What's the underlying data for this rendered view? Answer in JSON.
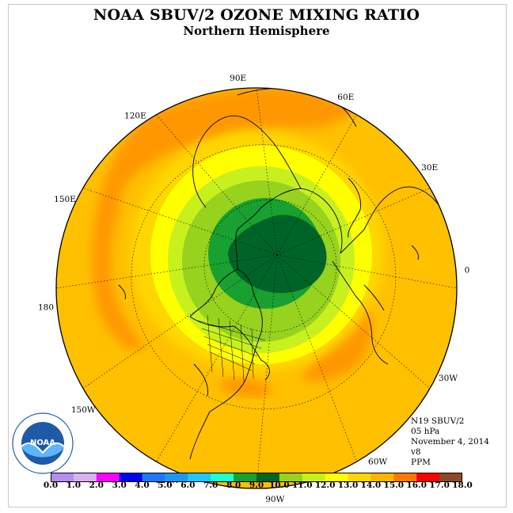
{
  "title": "NOAA SBUV/2 OZONE MIXING RATIO",
  "subtitle": "Northern Hemisphere",
  "longitude_labels": [
    {
      "text": "90E",
      "lon": 90
    },
    {
      "text": "60E",
      "lon": 60
    },
    {
      "text": "30E",
      "lon": 30
    },
    {
      "text": "0",
      "lon": 0
    },
    {
      "text": "30W",
      "lon": -30
    },
    {
      "text": "60W",
      "lon": -60
    },
    {
      "text": "90W",
      "lon": -90
    },
    {
      "text": "120W",
      "lon": -120
    },
    {
      "text": "150W",
      "lon": -150
    },
    {
      "text": "180",
      "lon": 180
    },
    {
      "text": "150E",
      "lon": 150
    },
    {
      "text": "120E",
      "lon": 120
    }
  ],
  "info": {
    "satellite": "N19 SBUV/2",
    "level": "05 hPa",
    "date": "November 4, 2014",
    "version": "v8",
    "units": "PPM"
  },
  "colorbar": {
    "ticks": [
      "0.0",
      "1.0",
      "2.0",
      "3.0",
      "4.0",
      "5.0",
      "6.0",
      "7.0",
      "8.0",
      "9.0",
      "10.0",
      "11.0",
      "12.0",
      "13.0",
      "14.0",
      "15.0",
      "16.0",
      "17.0",
      "18.0"
    ],
    "colors": [
      "#b58cf0",
      "#d9b3f0",
      "#ff00ff",
      "#0000ff",
      "#1e78ff",
      "#1e96f0",
      "#1ec8ff",
      "#1effd2",
      "#18a030",
      "#006428",
      "#96d21e",
      "#c8f01e",
      "#ffff00",
      "#ffd700",
      "#ffb400",
      "#ff7800",
      "#ff0000",
      "#8c4b28"
    ]
  },
  "map_colors": {
    "ocean_orange": "#ffc000",
    "band_orange": "#ff9800",
    "light_orange": "#ffd700",
    "yellow": "#ffff00",
    "yellow_green": "#c8f01e",
    "green": "#96d21e",
    "dark_green": "#006428",
    "mid_green": "#18a030"
  },
  "logo": {
    "text": "NOAA",
    "ring_text": "NATIONAL OCEANIC AND ATMOSPHERIC ADMINISTRATION · U.S. DEPARTMENT OF COMMERCE"
  }
}
